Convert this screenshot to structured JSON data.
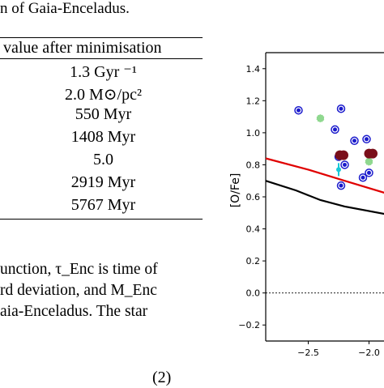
{
  "caption_fragment": "n of Gaia-Enceladus.",
  "table": {
    "header": "value after minimisation",
    "rows": [
      "1.3 Gyr ⁻¹",
      "2.0 M⊙/pc²",
      "550 Myr",
      "1408 Myr",
      "5.0",
      "2919 Myr",
      "5767 Myr"
    ]
  },
  "paragraph": {
    "line1": "unction, τ_Enc is time of",
    "line2": "rd deviation, and M_Enc",
    "line3": "aia-Enceladus. The star"
  },
  "equation_number": "(2)",
  "chart_data": {
    "type": "scatter",
    "ylabel": "[O/Fe]",
    "xlabel": "",
    "ylim": [
      -0.3,
      1.5
    ],
    "xlim": [
      -2.85,
      -1.85
    ],
    "yticks": [
      "1.4",
      "1.2",
      "1.0",
      "0.8",
      "0.6",
      "0.4",
      "0.2",
      "0.0",
      "−0.2"
    ],
    "ytick_values": [
      1.4,
      1.2,
      1.0,
      0.8,
      0.6,
      0.4,
      0.2,
      0.0,
      -0.2
    ],
    "xticks": [
      "−2.5",
      "−2.0"
    ],
    "xtick_values": [
      -2.5,
      -2.0
    ],
    "zero_line": 0.0,
    "series": [
      {
        "kind": "line",
        "color": "#e00000",
        "points": [
          [
            -2.85,
            0.84
          ],
          [
            -2.5,
            0.77
          ],
          [
            -2.2,
            0.7
          ],
          [
            -1.85,
            0.62
          ]
        ]
      },
      {
        "kind": "line",
        "color": "#000000",
        "points": [
          [
            -2.85,
            0.7
          ],
          [
            -2.6,
            0.64
          ],
          [
            -2.4,
            0.58
          ],
          [
            -2.2,
            0.54
          ],
          [
            -1.85,
            0.49
          ]
        ]
      },
      {
        "kind": "points",
        "color": "#1a1acc",
        "points": [
          [
            -2.58,
            1.14
          ],
          [
            -2.23,
            1.15
          ],
          [
            -2.28,
            1.02
          ],
          [
            -2.12,
            0.95
          ],
          [
            -2.02,
            0.96
          ],
          [
            -2.25,
            0.85
          ],
          [
            -2.2,
            0.8
          ],
          [
            -2.05,
            0.72
          ],
          [
            -2.0,
            0.75
          ],
          [
            -2.23,
            0.67
          ]
        ]
      },
      {
        "kind": "points",
        "color": "#8fd88f",
        "points": [
          [
            -2.4,
            1.09
          ],
          [
            -2.0,
            0.82
          ]
        ]
      },
      {
        "kind": "points",
        "color": "#7a0f1a",
        "points": [
          [
            -2.24,
            0.86
          ],
          [
            -2.21,
            0.86
          ],
          [
            -2.0,
            0.87
          ],
          [
            -1.97,
            0.87
          ]
        ]
      },
      {
        "kind": "points",
        "color": "#17c8d8",
        "points": [
          [
            -2.25,
            0.77
          ]
        ]
      }
    ]
  }
}
